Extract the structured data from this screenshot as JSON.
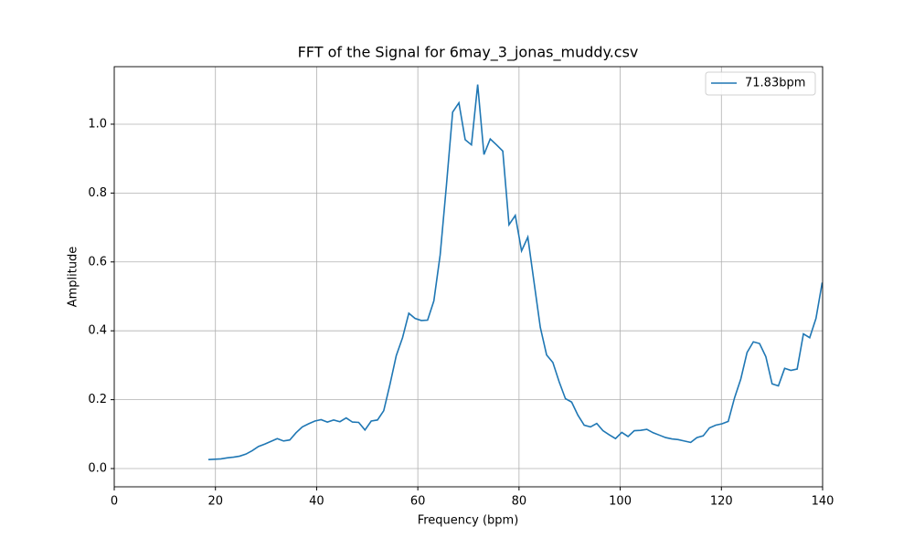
{
  "chart_data": {
    "type": "line",
    "title": "FFT of the Signal for 6may_3_jonas_muddy.csv",
    "xlabel": "Frequency (bpm)",
    "ylabel": "Amplitude",
    "x": [
      18.6,
      19.84,
      21.08,
      22.31,
      23.55,
      24.79,
      26.03,
      27.27,
      28.5,
      29.74,
      30.98,
      32.22,
      33.46,
      34.69,
      35.93,
      37.17,
      38.41,
      39.65,
      40.88,
      42.12,
      43.36,
      44.6,
      45.84,
      47.07,
      48.31,
      49.55,
      50.79,
      52.03,
      53.26,
      54.5,
      55.74,
      56.98,
      58.22,
      59.45,
      60.69,
      61.93,
      63.17,
      64.41,
      65.64,
      66.88,
      68.12,
      69.36,
      70.6,
      71.83,
      73.07,
      74.31,
      75.55,
      76.79,
      78.02,
      79.26,
      80.5,
      81.74,
      82.98,
      84.21,
      85.45,
      86.69,
      87.93,
      89.17,
      90.4,
      91.64,
      92.88,
      94.12,
      95.36,
      96.59,
      97.83,
      99.07,
      100.31,
      101.55,
      102.78,
      104.02,
      105.26,
      106.5,
      107.74,
      108.97,
      110.21,
      111.45,
      112.69,
      113.93,
      115.16,
      116.4,
      117.64,
      118.88,
      120.12,
      121.35,
      122.59,
      123.83,
      125.07,
      126.31,
      127.54,
      128.78,
      130.02,
      131.26,
      132.5,
      133.73,
      134.97,
      136.21,
      137.45,
      138.69,
      139.92
    ],
    "series": [
      {
        "name": "71.83bpm",
        "color": "#1f77b4",
        "values": [
          0.026,
          0.027,
          0.028,
          0.031,
          0.033,
          0.036,
          0.042,
          0.052,
          0.064,
          0.071,
          0.079,
          0.087,
          0.08,
          0.083,
          0.104,
          0.121,
          0.13,
          0.138,
          0.142,
          0.135,
          0.141,
          0.136,
          0.147,
          0.135,
          0.134,
          0.112,
          0.138,
          0.141,
          0.168,
          0.245,
          0.328,
          0.38,
          0.451,
          0.436,
          0.43,
          0.431,
          0.487,
          0.62,
          0.82,
          1.035,
          1.062,
          0.955,
          0.94,
          1.115,
          0.912,
          0.957,
          0.94,
          0.922,
          0.708,
          0.735,
          0.632,
          0.672,
          0.54,
          0.41,
          0.33,
          0.308,
          0.252,
          0.203,
          0.193,
          0.155,
          0.126,
          0.121,
          0.131,
          0.11,
          0.098,
          0.087,
          0.105,
          0.093,
          0.11,
          0.111,
          0.114,
          0.104,
          0.097,
          0.09,
          0.086,
          0.084,
          0.08,
          0.076,
          0.09,
          0.095,
          0.118,
          0.126,
          0.13,
          0.137,
          0.205,
          0.26,
          0.337,
          0.368,
          0.363,
          0.325,
          0.246,
          0.24,
          0.291,
          0.285,
          0.289,
          0.391,
          0.38,
          0.436,
          0.54
        ]
      }
    ],
    "xlim": [
      0,
      140
    ],
    "xticks": [
      0,
      20,
      40,
      60,
      80,
      100,
      120,
      140
    ],
    "ylim": [
      -0.053,
      1.167
    ],
    "yticks": [
      {
        "value": 0,
        "label": "0.0"
      },
      {
        "value": 0.2,
        "label": "0.2"
      },
      {
        "value": 0.4,
        "label": "0.4"
      },
      {
        "value": 0.6,
        "label": "0.6"
      },
      {
        "value": 0.8,
        "label": "0.8"
      },
      {
        "value": 1,
        "label": "1.0"
      }
    ],
    "grid": true,
    "legend": "upper-right"
  }
}
